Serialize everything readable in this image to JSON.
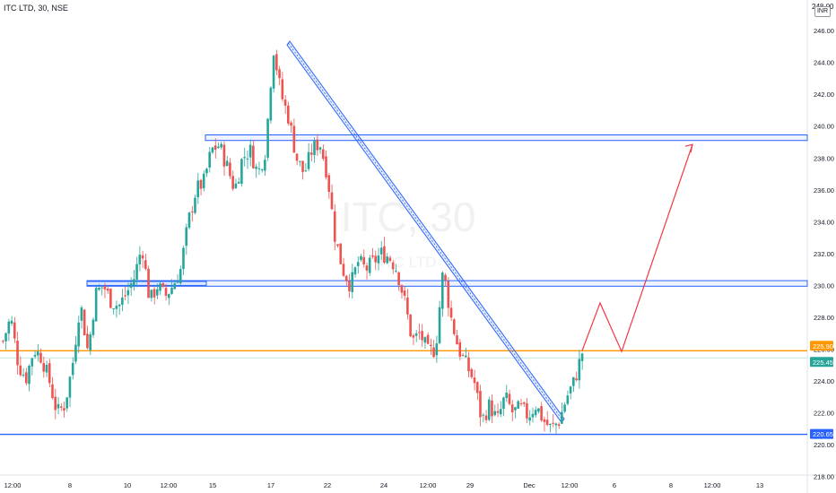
{
  "header": {
    "title": "ITC LTD, 30, NSE",
    "currency": "INR",
    "top_price_partial": "248.00"
  },
  "watermark": {
    "symbol": "ITC, 30",
    "sub": "ITC LTD"
  },
  "colors": {
    "up": "#26a69a",
    "down": "#ef5350",
    "zone": "#2962ff",
    "trend": "#2962ff",
    "orange_line": "#ff9800",
    "blue_line": "#2962ff",
    "projection": "#f23645",
    "label_orange": "#ff9800",
    "label_green": "#26a69a",
    "label_blue": "#2962ff",
    "axis_text": "#131722"
  },
  "chart_data": {
    "type": "candlestick",
    "title": "ITC LTD, 30, NSE",
    "ylim": [
      216.8,
      248.5
    ],
    "y_ticks": [
      "218.00",
      "220.00",
      "222.00",
      "224.00",
      "226.00",
      "228.00",
      "230.00",
      "232.00",
      "234.00",
      "236.00",
      "238.00",
      "240.00",
      "242.00",
      "244.00",
      "246.00"
    ],
    "x_ticks": [
      "12:00",
      "8",
      "10",
      "12:00",
      "15",
      "17",
      "22",
      "24",
      "12:00",
      "29",
      "Dec",
      "12:00",
      "6",
      "8",
      "12:00",
      "13"
    ],
    "price_labels": [
      {
        "value": "225.90",
        "kind": "orange"
      },
      {
        "value": "225.45",
        "kind": "green"
      },
      {
        "value": "220.65",
        "kind": "blue"
      }
    ],
    "horizontal_lines": [
      {
        "name": "resistance-orange",
        "price": 225.9
      },
      {
        "name": "support-blue",
        "price": 220.65
      }
    ],
    "zones": [
      {
        "name": "upper-zone",
        "from": 239.1,
        "to": 239.45
      },
      {
        "name": "mid-zone",
        "from": 229.95,
        "to": 230.3
      },
      {
        "name": "low-zone",
        "from": 230.0,
        "to": 230.25
      }
    ],
    "trend_channel": {
      "start": 245.1,
      "end": 221.4
    },
    "projection": [
      225.9,
      228.9,
      225.85,
      238.85
    ],
    "path": [
      226.5,
      228.0,
      225.0,
      224.2,
      226.0,
      225.5,
      224.0,
      222.0,
      222.5,
      225.0,
      229.0,
      225.8,
      229.5,
      230.0,
      229.0,
      228.7,
      229.5,
      230.5,
      232.5,
      229.0,
      230.0,
      229.3,
      230.0,
      231.0,
      234.0,
      236.0,
      236.5,
      238.5,
      238.8,
      237.5,
      236.0,
      238.0,
      238.5,
      237.0,
      238.5,
      245.0,
      242.0,
      240.5,
      238.0,
      237.0,
      238.5,
      239.0,
      237.0,
      233.0,
      231.0,
      230.0,
      231.5,
      231.0,
      231.5,
      232.0,
      231.8,
      231.0,
      229.0,
      226.5,
      227.0,
      225.8,
      226.0,
      231.0,
      228.0,
      226.0,
      225.0,
      224.0,
      221.5,
      222.5,
      221.5,
      223.0,
      222.0,
      222.3,
      221.8,
      222.5,
      221.5,
      221.0,
      221.5,
      223.0,
      224.0,
      225.8
    ],
    "series": [
      {
        "name": "ITC LTD",
        "values": []
      }
    ]
  }
}
